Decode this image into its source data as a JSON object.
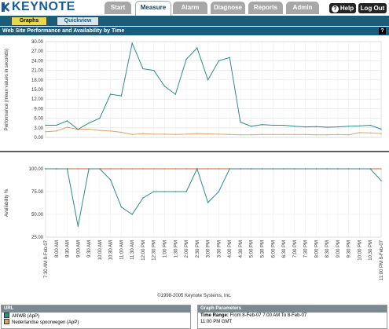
{
  "app": {
    "logo_text": "KEYNOTE",
    "tabs": [
      {
        "label": "Start",
        "active": false
      },
      {
        "label": "Measure",
        "active": true
      },
      {
        "label": "Alarm",
        "active": false
      },
      {
        "label": "Diagnose",
        "active": false
      },
      {
        "label": "Reports",
        "active": false
      },
      {
        "label": "Admin",
        "active": false
      }
    ],
    "help_label": "Help",
    "logout_label": "Log Out"
  },
  "subtabs": [
    {
      "label": "Graphs",
      "active": true
    },
    {
      "label": "Quickview",
      "active": false
    }
  ],
  "page_title": "Web Site Performance and Availability by Time",
  "help_icon": "?",
  "colors": {
    "header_teal": "#1b5c7a",
    "series_anwb": "#2f8a8a",
    "series_ns": "#d9a36a",
    "availability_ref": "#d96a2a"
  },
  "chart_data": [
    {
      "type": "line",
      "ylabel": "Performance (mean values in seconds)",
      "ylim": [
        0,
        30
      ],
      "yticks": [
        "0.00",
        "3.00",
        "6.00",
        "9.00",
        "12.00",
        "15.00",
        "18.00",
        "21.00",
        "24.00",
        "27.00",
        "30.00"
      ],
      "grid": true,
      "x": [
        "7:30 AM 8-Feb-07",
        "8:00 AM",
        "8:30 AM",
        "9:00 AM",
        "9:30 AM",
        "10:00 AM",
        "10:30 AM",
        "11:00 AM",
        "11:30 AM",
        "12:00 PM",
        "12:30 PM",
        "1:00 PM",
        "1:30 PM",
        "2:00 PM",
        "2:30 PM",
        "3:00 PM",
        "3:30 PM",
        "4:00 PM",
        "4:30 PM",
        "5:00 PM",
        "5:30 PM",
        "6:00 PM",
        "6:30 PM",
        "7:00 PM",
        "7:30 PM",
        "8:00 PM",
        "8:30 PM",
        "9:00 PM",
        "9:30 PM",
        "10:00 PM",
        "10:30 PM",
        "11:00 PM 8-Feb-07"
      ],
      "series": [
        {
          "name": "ANWB (ApP)",
          "color": "#2f8a8a",
          "values": [
            3.8,
            3.8,
            5.2,
            2.5,
            4.5,
            6.0,
            13.5,
            13.0,
            29.5,
            21.5,
            21.0,
            16.0,
            13.5,
            24.5,
            28.0,
            18.0,
            24.0,
            25.0,
            4.8,
            3.5,
            4.0,
            3.8,
            3.8,
            3.5,
            3.3,
            3.4,
            3.2,
            3.3,
            3.5,
            3.6,
            3.8,
            2.6
          ]
        },
        {
          "name": "Nederlandse spoorwegen (ApP)",
          "color": "#d9a36a",
          "values": [
            1.8,
            2.0,
            3.2,
            2.5,
            2.6,
            2.2,
            2.0,
            1.6,
            0.9,
            1.2,
            1.0,
            1.0,
            0.9,
            1.0,
            1.2,
            1.1,
            1.0,
            0.9,
            0.8,
            0.8,
            0.9,
            0.9,
            0.9,
            0.9,
            0.9,
            0.8,
            0.8,
            0.9,
            0.8,
            1.5,
            1.4,
            1.2
          ]
        }
      ]
    },
    {
      "type": "line",
      "ylabel": "Availability %",
      "ylim": [
        25,
        100
      ],
      "yticks": [
        "25.00",
        "50.00",
        "75.00",
        "100.00"
      ],
      "grid": true,
      "x": [
        "7:30 AM 8-Feb-07",
        "8:00 AM",
        "8:30 AM",
        "9:00 AM",
        "9:30 AM",
        "10:00 AM",
        "10:30 AM",
        "11:00 AM",
        "11:30 AM",
        "12:00 PM",
        "12:30 PM",
        "1:00 PM",
        "1:30 PM",
        "2:00 PM",
        "2:30 PM",
        "3:00 PM",
        "3:30 PM",
        "4:00 PM",
        "4:30 PM",
        "5:00 PM",
        "5:30 PM",
        "6:00 PM",
        "6:30 PM",
        "7:00 PM",
        "7:30 PM",
        "8:00 PM",
        "8:30 PM",
        "9:00 PM",
        "9:30 PM",
        "10:00 PM",
        "10:30 PM",
        "11:00 PM 8-Feb-07"
      ],
      "series": [
        {
          "name": "ANWB (ApP)",
          "color": "#2f8a8a",
          "values": [
            100,
            100,
            100,
            37,
            100,
            100,
            88,
            58,
            50,
            68,
            75,
            75,
            75,
            75,
            100,
            63,
            75,
            100,
            100,
            100,
            100,
            100,
            100,
            100,
            100,
            100,
            100,
            100,
            100,
            100,
            100,
            87
          ]
        },
        {
          "name": "Nederlandse spoorwegen (ApP)",
          "color": "#d96a2a",
          "values": [
            100,
            100,
            100,
            100,
            100,
            100,
            100,
            100,
            100,
            100,
            100,
            100,
            100,
            100,
            100,
            100,
            100,
            100,
            100,
            100,
            100,
            100,
            100,
            100,
            100,
            100,
            100,
            100,
            100,
            100,
            100,
            100
          ]
        }
      ]
    }
  ],
  "copyright": "©1998-2005 Keynote Systems, Inc.",
  "url_panel": {
    "header": "URL",
    "items": [
      {
        "label": "ANWB (ApP)",
        "color": "#2f8a8a"
      },
      {
        "label": "Nederlandse spoorwegen (ApP)",
        "color": "#d9a36a"
      }
    ]
  },
  "params_panel": {
    "header": "Graph Parameters",
    "time_range_label": "Time Range:",
    "time_range_value": "From 8-Feb-07 7:00 AM To 8-Feb-07",
    "time_range_cont": "11:00 PM GMT"
  }
}
